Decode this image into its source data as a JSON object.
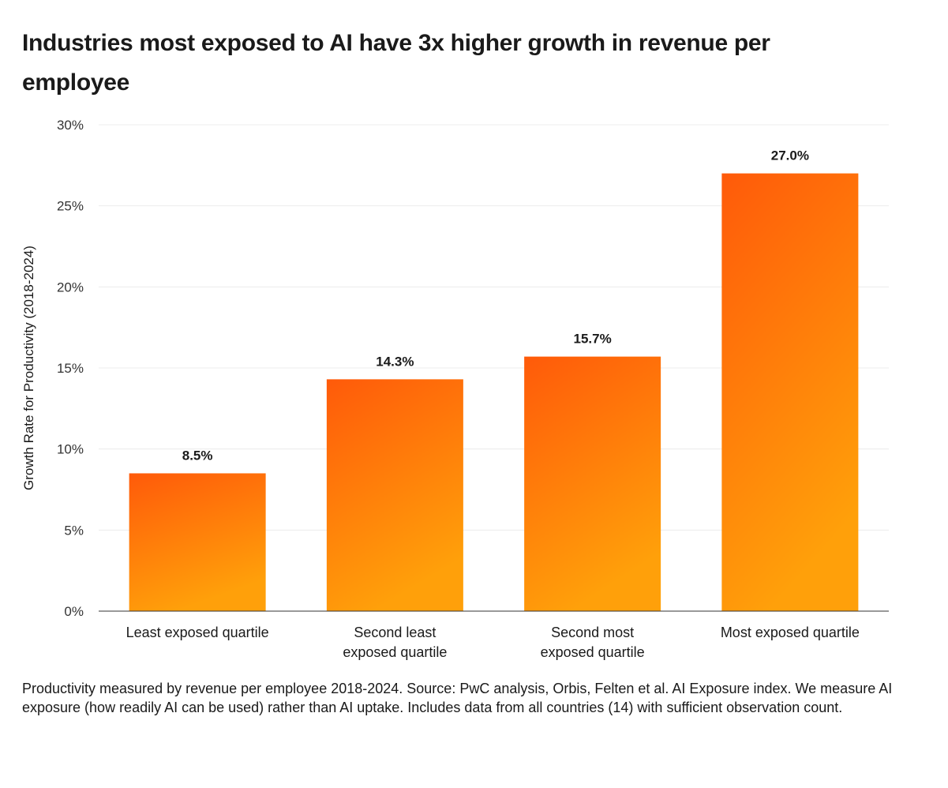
{
  "chart_data": {
    "type": "bar",
    "title": "Industries most exposed to AI have 3x higher growth in revenue per employee",
    "xlabel": "",
    "ylabel": "Growth Rate for Productivity (2018-2024)",
    "ylim": [
      0,
      30
    ],
    "yticks": [
      0,
      5,
      10,
      15,
      20,
      25,
      30
    ],
    "ytick_labels": [
      "0%",
      "5%",
      "10%",
      "15%",
      "20%",
      "25%",
      "30%"
    ],
    "grid": true,
    "categories": [
      "Least exposed quartile",
      "Second least exposed quartile",
      "Second most exposed quartile",
      "Most exposed quartile"
    ],
    "category_lines": [
      [
        "Least exposed quartile"
      ],
      [
        "Second least",
        "exposed quartile"
      ],
      [
        "Second most",
        "exposed quartile"
      ],
      [
        "Most exposed quartile"
      ]
    ],
    "values": [
      8.5,
      14.3,
      15.7,
      27.0
    ],
    "value_labels": [
      "8.5%",
      "14.3%",
      "15.7%",
      "27.0%"
    ],
    "colors": {
      "bar_top": "#FF5A0A",
      "bar_bottom": "#FFA00A",
      "gridline": "#ececec",
      "axis": "#333333"
    }
  },
  "footnote": "Productivity measured by revenue per employee 2018-2024. Source: PwC analysis, Orbis, Felten et al. AI Exposure index. We measure AI exposure (how readily AI can be used) rather than AI uptake. Includes data from all countries (14) with sufficient observation count."
}
